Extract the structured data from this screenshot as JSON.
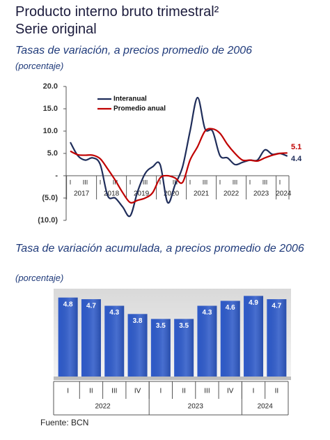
{
  "header": {
    "title": "Producto interno bruto trimestral²",
    "subtitle": "Serie original"
  },
  "chart_data": [
    {
      "type": "line",
      "title": "Tasas de variación, a precios promedio de 2006",
      "y_label": "(porcentaje)",
      "categories": [
        "I",
        null,
        "III",
        null,
        "I",
        null,
        "III",
        null,
        "I",
        null,
        "III",
        null,
        "I",
        null,
        "III",
        null,
        "I",
        null,
        "III",
        null,
        "I",
        null,
        "III",
        null,
        "I",
        null,
        "III",
        null,
        "I",
        null
      ],
      "years": [
        "2017",
        "2018",
        "2019",
        "2020",
        "2021",
        "2022",
        "2023",
        "2024"
      ],
      "series": [
        {
          "name": "Interanual",
          "color": "#1f2d5a",
          "values": [
            7.5,
            4.5,
            3.5,
            4.0,
            2.5,
            -4.5,
            -5.0,
            -7.0,
            -9.0,
            -3.5,
            0.5,
            2.0,
            2.5,
            -6.0,
            -2.0,
            2.0,
            10.0,
            17.5,
            10.5,
            10.0,
            4.5,
            4.0,
            2.5,
            3.0,
            3.5,
            3.5,
            5.8,
            4.8,
            5.0,
            4.4
          ]
        },
        {
          "name": "Promedio anual",
          "color": "#c00000",
          "values": [
            5.5,
            4.7,
            4.6,
            4.6,
            3.8,
            1.5,
            -1.0,
            -3.8,
            -6.0,
            -5.5,
            -5.0,
            -3.8,
            -0.5,
            0.0,
            -0.5,
            -1.5,
            3.5,
            6.5,
            10.0,
            10.5,
            9.5,
            7.0,
            5.0,
            3.5,
            3.5,
            3.3,
            4.0,
            4.6,
            5.0,
            5.1
          ]
        }
      ],
      "ylim": [
        -10,
        20
      ],
      "yticks": [
        {
          "value": -10,
          "label": "(10.0)"
        },
        {
          "value": -5,
          "label": "(5.0)"
        },
        {
          "value": 0,
          "label": "-"
        },
        {
          "value": 5,
          "label": "5.0"
        },
        {
          "value": 10,
          "label": "10.0"
        },
        {
          "value": 15,
          "label": "15.0"
        },
        {
          "value": 20,
          "label": "20.0"
        }
      ],
      "legend": "upper left"
    },
    {
      "type": "bar",
      "title": "Tasa de variación acumulada, a precios promedio de 2006",
      "y_label": "(porcentaje)",
      "categories": [
        "I",
        "II",
        "III",
        "IV",
        "I",
        "II",
        "III",
        "IV",
        "I",
        "II"
      ],
      "years": [
        "2022",
        "2023",
        "2024"
      ],
      "values": [
        4.8,
        4.7,
        4.3,
        3.8,
        3.5,
        3.5,
        4.3,
        4.6,
        4.9,
        4.7
      ],
      "color": "#2f5bc9",
      "ylim": [
        0,
        5
      ]
    }
  ],
  "source": "Fuente: BCN"
}
